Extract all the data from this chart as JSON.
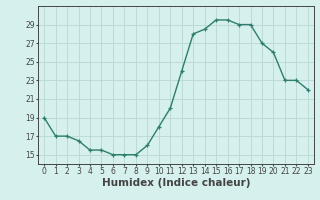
{
  "x": [
    0,
    1,
    2,
    3,
    4,
    5,
    6,
    7,
    8,
    9,
    10,
    11,
    12,
    13,
    14,
    15,
    16,
    17,
    18,
    19,
    20,
    21,
    22,
    23
  ],
  "y": [
    19,
    17,
    17,
    16.5,
    15.5,
    15.5,
    15,
    15,
    15,
    16,
    18,
    20,
    24,
    28,
    28.5,
    29.5,
    29.5,
    29,
    29,
    27,
    26,
    23,
    23,
    22
  ],
  "line_color": "#2e7d6e",
  "marker": "+",
  "marker_size": 3.5,
  "bg_color": "#d6f0ed",
  "grid_color": "#b8d8d4",
  "axis_color": "#444444",
  "xlabel": "Humidex (Indice chaleur)",
  "xlim": [
    -0.5,
    23.5
  ],
  "ylim": [
    14,
    31
  ],
  "yticks": [
    15,
    17,
    19,
    21,
    23,
    25,
    27,
    29
  ],
  "xticks": [
    0,
    1,
    2,
    3,
    4,
    5,
    6,
    7,
    8,
    9,
    10,
    11,
    12,
    13,
    14,
    15,
    16,
    17,
    18,
    19,
    20,
    21,
    22,
    23
  ],
  "tick_fontsize": 5.5,
  "xlabel_fontsize": 7.5,
  "lw": 1.0
}
